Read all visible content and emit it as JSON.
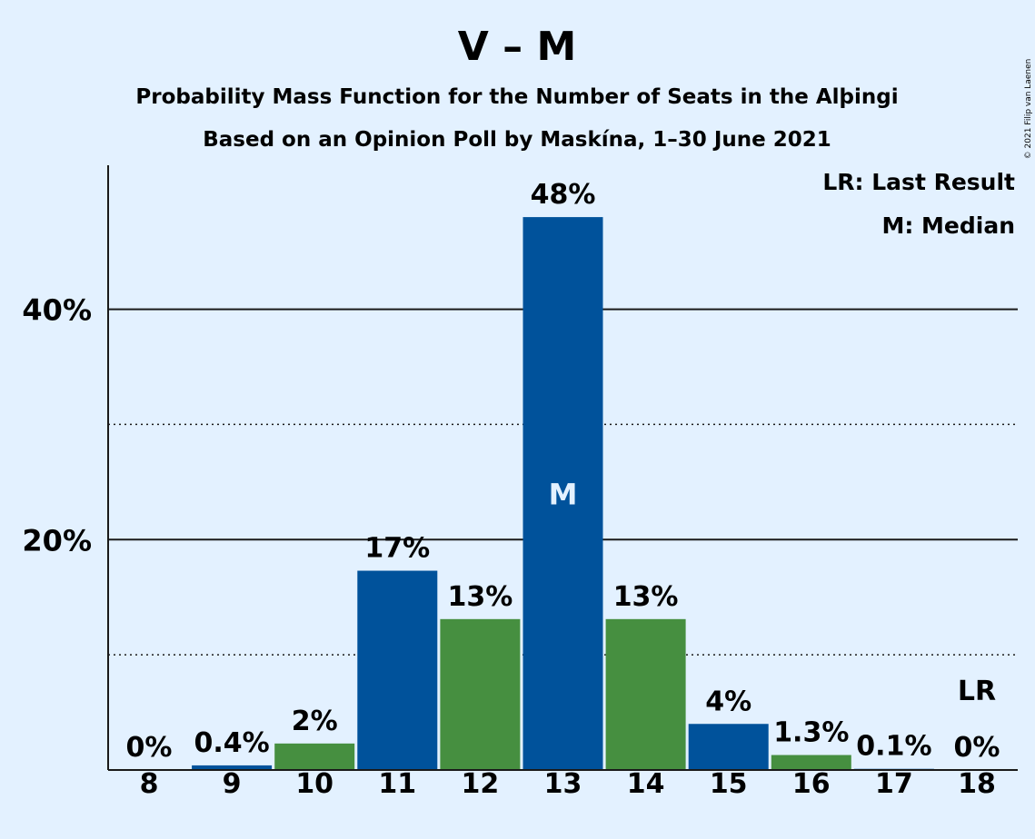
{
  "chart_data": {
    "type": "bar",
    "title": "V – M",
    "subtitle_1": "Probability Mass Function for the Number of Seats in the Alþingi",
    "subtitle_2": "Based on an Opinion Poll by Maskína, 1–30 June 2021",
    "categories": [
      "8",
      "9",
      "10",
      "11",
      "12",
      "13",
      "14",
      "15",
      "16",
      "17",
      "18"
    ],
    "values": [
      0,
      0.4,
      2.3,
      17.3,
      13.1,
      48,
      13.1,
      4,
      1.3,
      0.1,
      0
    ],
    "labels": [
      "0%",
      "0.4%",
      "2%",
      "17%",
      "13%",
      "48%",
      "13%",
      "4%",
      "1.3%",
      "0.1%",
      "0%"
    ],
    "bar_colors": [
      "#00529b",
      "#00529b",
      "#468f40",
      "#00529b",
      "#468f40",
      "#00529b",
      "#468f40",
      "#00529b",
      "#468f40",
      "#00529b",
      "#468f40"
    ],
    "yticks": [
      {
        "value": 20,
        "label": "20%"
      },
      {
        "value": 40,
        "label": "40%"
      }
    ],
    "minor_gridlines": [
      10,
      30
    ],
    "ylim": [
      0,
      52.5
    ],
    "median": {
      "category": "13",
      "label": "M"
    },
    "last_result": {
      "category": "18",
      "label": "LR"
    },
    "legend": {
      "position": "top-right",
      "lines": [
        "LR: Last Result",
        "M: Median"
      ]
    },
    "copyright": "© 2021 Filip van Laenen"
  }
}
